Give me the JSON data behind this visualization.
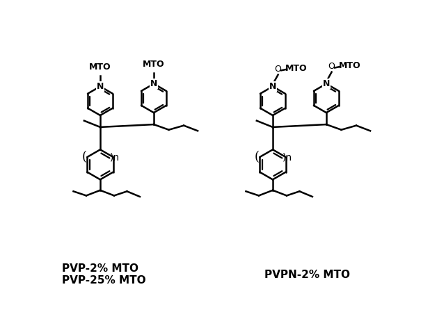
{
  "background_color": "#ffffff",
  "line_color": "#000000",
  "line_width": 1.8,
  "label_left_line1": "PVP-2% MTO",
  "label_left_line2": "PVP-25% MTO",
  "label_right": "PVPN-2% MTO",
  "label_fontsize": 11
}
